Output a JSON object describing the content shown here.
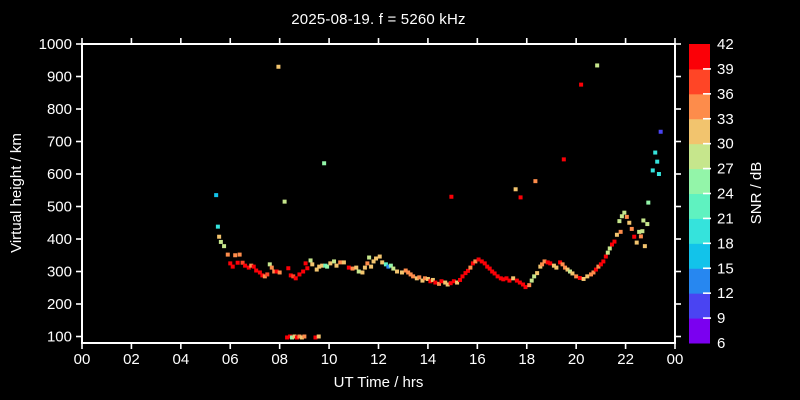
{
  "title": "2025-08-19. f = 5260 kHz",
  "colors": {
    "background": "#000000",
    "foreground": "#ffffff"
  },
  "chart_data": {
    "type": "scatter",
    "title": "2025-08-19. f = 5260 kHz",
    "xlabel": "UT Time / hrs",
    "ylabel": "Virtual height / km",
    "xlim": [
      0,
      24
    ],
    "ylim": [
      80,
      1000
    ],
    "grid": false,
    "marker": {
      "shape": "square",
      "size": 4
    },
    "xticks": {
      "values": [
        0,
        2,
        4,
        6,
        8,
        10,
        12,
        14,
        16,
        18,
        20,
        22,
        24
      ],
      "labels": [
        "00",
        "02",
        "04",
        "06",
        "08",
        "10",
        "12",
        "14",
        "16",
        "18",
        "20",
        "22",
        "00"
      ]
    },
    "yticks": [
      100,
      200,
      300,
      400,
      500,
      600,
      700,
      800,
      900,
      1000
    ],
    "colorbar": {
      "label": "SNR / dB",
      "min": 6,
      "max": 42,
      "tick_step": 3,
      "tick_labels": [
        6,
        9,
        12,
        15,
        18,
        21,
        24,
        27,
        30,
        33,
        36,
        39,
        42
      ],
      "segment_colors": [
        "#7b00f0",
        "#4a44f2",
        "#2787f0",
        "#12c3ea",
        "#35e3dc",
        "#5ff2c0",
        "#93f5a9",
        "#c6e68c",
        "#f2c46e",
        "#fd8c4b",
        "#ff4526",
        "#fb0007"
      ]
    },
    "series": [
      {
        "name": "echo points",
        "columns": [
          "ut_hours",
          "virtual_height_km",
          "snr_db"
        ],
        "points": [
          [
            5.43,
            535,
            16
          ],
          [
            5.5,
            438,
            19
          ],
          [
            5.55,
            407,
            31
          ],
          [
            5.62,
            391,
            28
          ],
          [
            5.75,
            378,
            28
          ],
          [
            5.9,
            352,
            34
          ],
          [
            6.0,
            325,
            40
          ],
          [
            6.1,
            315,
            40
          ],
          [
            6.2,
            350,
            34
          ],
          [
            6.3,
            327,
            40
          ],
          [
            6.38,
            352,
            34
          ],
          [
            6.5,
            327,
            37
          ],
          [
            6.6,
            318,
            40
          ],
          [
            6.75,
            312,
            40
          ],
          [
            6.85,
            318,
            34
          ],
          [
            6.95,
            315,
            40
          ],
          [
            7.05,
            303,
            40
          ],
          [
            7.2,
            297,
            40
          ],
          [
            7.3,
            288,
            40
          ],
          [
            7.4,
            285,
            34
          ],
          [
            7.5,
            291,
            37
          ],
          [
            7.6,
            322,
            28
          ],
          [
            7.68,
            312,
            34
          ],
          [
            7.78,
            300,
            34
          ],
          [
            7.88,
            300,
            40
          ],
          [
            8.0,
            297,
            34
          ],
          [
            8.35,
            310,
            40
          ],
          [
            8.45,
            288,
            40
          ],
          [
            8.55,
            285,
            37
          ],
          [
            8.65,
            279,
            40
          ],
          [
            8.8,
            291,
            40
          ],
          [
            8.95,
            300,
            40
          ],
          [
            9.05,
            325,
            40
          ],
          [
            9.12,
            310,
            40
          ],
          [
            9.25,
            334,
            28
          ],
          [
            9.32,
            322,
            31
          ],
          [
            9.5,
            306,
            31
          ],
          [
            9.6,
            315,
            31
          ],
          [
            9.72,
            318,
            31
          ],
          [
            9.85,
            318,
            22
          ],
          [
            9.92,
            315,
            25
          ],
          [
            10.05,
            325,
            31
          ],
          [
            10.2,
            331,
            28
          ],
          [
            10.3,
            318,
            31
          ],
          [
            10.45,
            328,
            34
          ],
          [
            10.6,
            328,
            31
          ],
          [
            10.8,
            312,
            40
          ],
          [
            10.95,
            309,
            34
          ],
          [
            11.1,
            312,
            31
          ],
          [
            11.2,
            300,
            28
          ],
          [
            11.35,
            297,
            31
          ],
          [
            11.45,
            312,
            31
          ],
          [
            11.55,
            325,
            34
          ],
          [
            11.62,
            343,
            28
          ],
          [
            11.7,
            315,
            31
          ],
          [
            11.8,
            331,
            31
          ],
          [
            11.9,
            340,
            31
          ],
          [
            12.05,
            346,
            31
          ],
          [
            12.15,
            328,
            31
          ],
          [
            12.3,
            322,
            22
          ],
          [
            12.4,
            315,
            13
          ],
          [
            12.5,
            318,
            25
          ],
          [
            12.6,
            309,
            28
          ],
          [
            12.75,
            300,
            31
          ],
          [
            12.95,
            297,
            31
          ],
          [
            13.1,
            303,
            34
          ],
          [
            13.2,
            297,
            34
          ],
          [
            13.3,
            291,
            34
          ],
          [
            13.4,
            285,
            34
          ],
          [
            13.55,
            279,
            31
          ],
          [
            13.65,
            282,
            34
          ],
          [
            13.78,
            272,
            31
          ],
          [
            13.88,
            279,
            34
          ],
          [
            14.0,
            277,
            31
          ],
          [
            14.1,
            270,
            40
          ],
          [
            14.2,
            274,
            31
          ],
          [
            14.3,
            266,
            40
          ],
          [
            14.45,
            262,
            34
          ],
          [
            14.55,
            270,
            40
          ],
          [
            14.7,
            266,
            31
          ],
          [
            14.8,
            260,
            31
          ],
          [
            14.92,
            264,
            40
          ],
          [
            15.05,
            270,
            40
          ],
          [
            15.18,
            266,
            31
          ],
          [
            15.3,
            274,
            40
          ],
          [
            15.4,
            285,
            40
          ],
          [
            15.52,
            295,
            40
          ],
          [
            15.62,
            302,
            40
          ],
          [
            15.72,
            312,
            34
          ],
          [
            15.82,
            325,
            40
          ],
          [
            15.92,
            331,
            34
          ],
          [
            16.05,
            337,
            40
          ],
          [
            16.18,
            331,
            40
          ],
          [
            16.3,
            325,
            40
          ],
          [
            16.4,
            315,
            40
          ],
          [
            16.5,
            309,
            40
          ],
          [
            16.6,
            300,
            40
          ],
          [
            16.7,
            294,
            40
          ],
          [
            16.82,
            285,
            40
          ],
          [
            16.95,
            279,
            40
          ],
          [
            17.05,
            276,
            40
          ],
          [
            17.18,
            279,
            40
          ],
          [
            17.3,
            272,
            40
          ],
          [
            17.45,
            279,
            31
          ],
          [
            17.6,
            272,
            40
          ],
          [
            17.72,
            266,
            40
          ],
          [
            17.85,
            260,
            40
          ],
          [
            17.95,
            252,
            40
          ],
          [
            18.1,
            258,
            34
          ],
          [
            18.2,
            272,
            28
          ],
          [
            18.3,
            285,
            28
          ],
          [
            18.42,
            295,
            31
          ],
          [
            18.55,
            315,
            31
          ],
          [
            18.62,
            322,
            34
          ],
          [
            18.72,
            331,
            34
          ],
          [
            18.85,
            328,
            40
          ],
          [
            18.95,
            325,
            40
          ],
          [
            19.1,
            318,
            31
          ],
          [
            19.2,
            312,
            31
          ],
          [
            19.35,
            328,
            40
          ],
          [
            19.45,
            322,
            34
          ],
          [
            19.55,
            312,
            34
          ],
          [
            19.65,
            306,
            31
          ],
          [
            19.75,
            300,
            28
          ],
          [
            19.85,
            294,
            31
          ],
          [
            20.0,
            285,
            34
          ],
          [
            20.15,
            280,
            40
          ],
          [
            20.3,
            277,
            31
          ],
          [
            20.45,
            285,
            31
          ],
          [
            20.6,
            291,
            34
          ],
          [
            20.7,
            297,
            34
          ],
          [
            20.8,
            306,
            40
          ],
          [
            20.9,
            315,
            34
          ],
          [
            21.0,
            322,
            40
          ],
          [
            21.1,
            331,
            40
          ],
          [
            21.2,
            346,
            40
          ],
          [
            21.28,
            358,
            28
          ],
          [
            21.36,
            371,
            28
          ],
          [
            21.45,
            383,
            40
          ],
          [
            21.55,
            392,
            40
          ],
          [
            21.65,
            413,
            31
          ],
          [
            21.75,
            455,
            28
          ],
          [
            21.8,
            422,
            34
          ],
          [
            21.85,
            470,
            28
          ],
          [
            21.95,
            481,
            28
          ],
          [
            22.05,
            468,
            34
          ],
          [
            22.15,
            450,
            31
          ],
          [
            22.25,
            431,
            34
          ],
          [
            22.35,
            407,
            40
          ],
          [
            22.45,
            389,
            31
          ],
          [
            22.55,
            422,
            28
          ],
          [
            22.62,
            408,
            34
          ],
          [
            22.68,
            424,
            28
          ],
          [
            22.72,
            457,
            28
          ],
          [
            22.78,
            378,
            31
          ],
          [
            22.88,
            446,
            28
          ],
          [
            22.92,
            512,
            25
          ],
          [
            7.95,
            930,
            31
          ],
          [
            8.2,
            515,
            28
          ],
          [
            9.8,
            633,
            25
          ],
          [
            14.95,
            530,
            40
          ],
          [
            17.55,
            553,
            31
          ],
          [
            17.75,
            528,
            40
          ],
          [
            18.35,
            578,
            34
          ],
          [
            19.5,
            645,
            40
          ],
          [
            20.2,
            875,
            40
          ],
          [
            20.85,
            934,
            28
          ],
          [
            23.1,
            611,
            19
          ],
          [
            23.2,
            666,
            19
          ],
          [
            23.28,
            638,
            19
          ],
          [
            23.35,
            600,
            19
          ],
          [
            23.42,
            730,
            10
          ],
          [
            8.3,
            97,
            40
          ],
          [
            8.42,
            100,
            40
          ],
          [
            8.5,
            97,
            25
          ],
          [
            8.6,
            100,
            31
          ],
          [
            8.7,
            97,
            40
          ],
          [
            8.8,
            100,
            34
          ],
          [
            8.9,
            97,
            31
          ],
          [
            9.0,
            100,
            34
          ],
          [
            9.45,
            97,
            40
          ],
          [
            9.58,
            100,
            31
          ]
        ]
      }
    ]
  }
}
